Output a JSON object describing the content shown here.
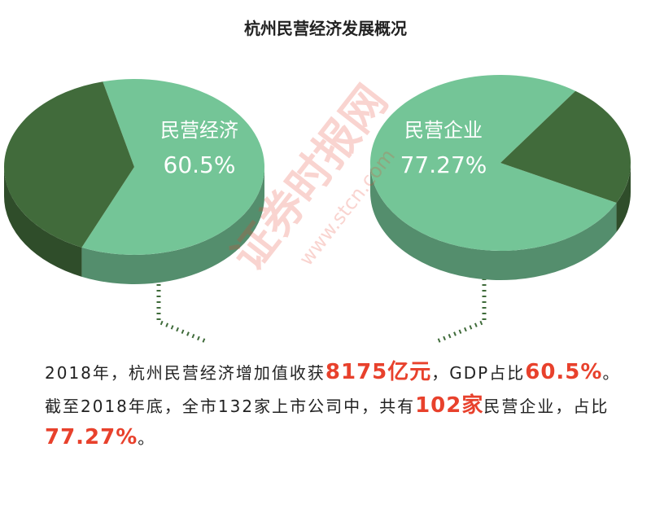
{
  "title": "杭州民营经济发展概况",
  "watermark": [
    "证券时报网",
    "www.stcn.com"
  ],
  "chart_data": [
    {
      "type": "pie",
      "categories": [
        "民营经济",
        null
      ],
      "values": [
        60.5,
        39.5
      ],
      "value_labels": [
        "60.5%",
        null
      ],
      "colors": [
        "#74c597",
        "#416b3b"
      ]
    },
    {
      "type": "pie",
      "categories": [
        "民营企业",
        null
      ],
      "values": [
        77.27,
        22.73
      ],
      "value_labels": [
        "77.27%",
        null
      ],
      "colors": [
        "#74c597",
        "#416b3b"
      ]
    }
  ],
  "paragraphs": [
    [
      {
        "text": "2018年，杭州民营经济增加值收获"
      },
      {
        "text": "8175亿元",
        "highlight": true
      },
      {
        "text": "，GDP占比"
      },
      {
        "text": "60.5%",
        "highlight": true
      },
      {
        "text": "。"
      }
    ],
    [
      {
        "text": "截至2018年底，全市132家上市公司中，共有"
      },
      {
        "text": "102家",
        "highlight": true
      },
      {
        "text": "民营企业，占比"
      },
      {
        "text": "77.27%",
        "highlight": true
      },
      {
        "text": "。"
      }
    ]
  ]
}
